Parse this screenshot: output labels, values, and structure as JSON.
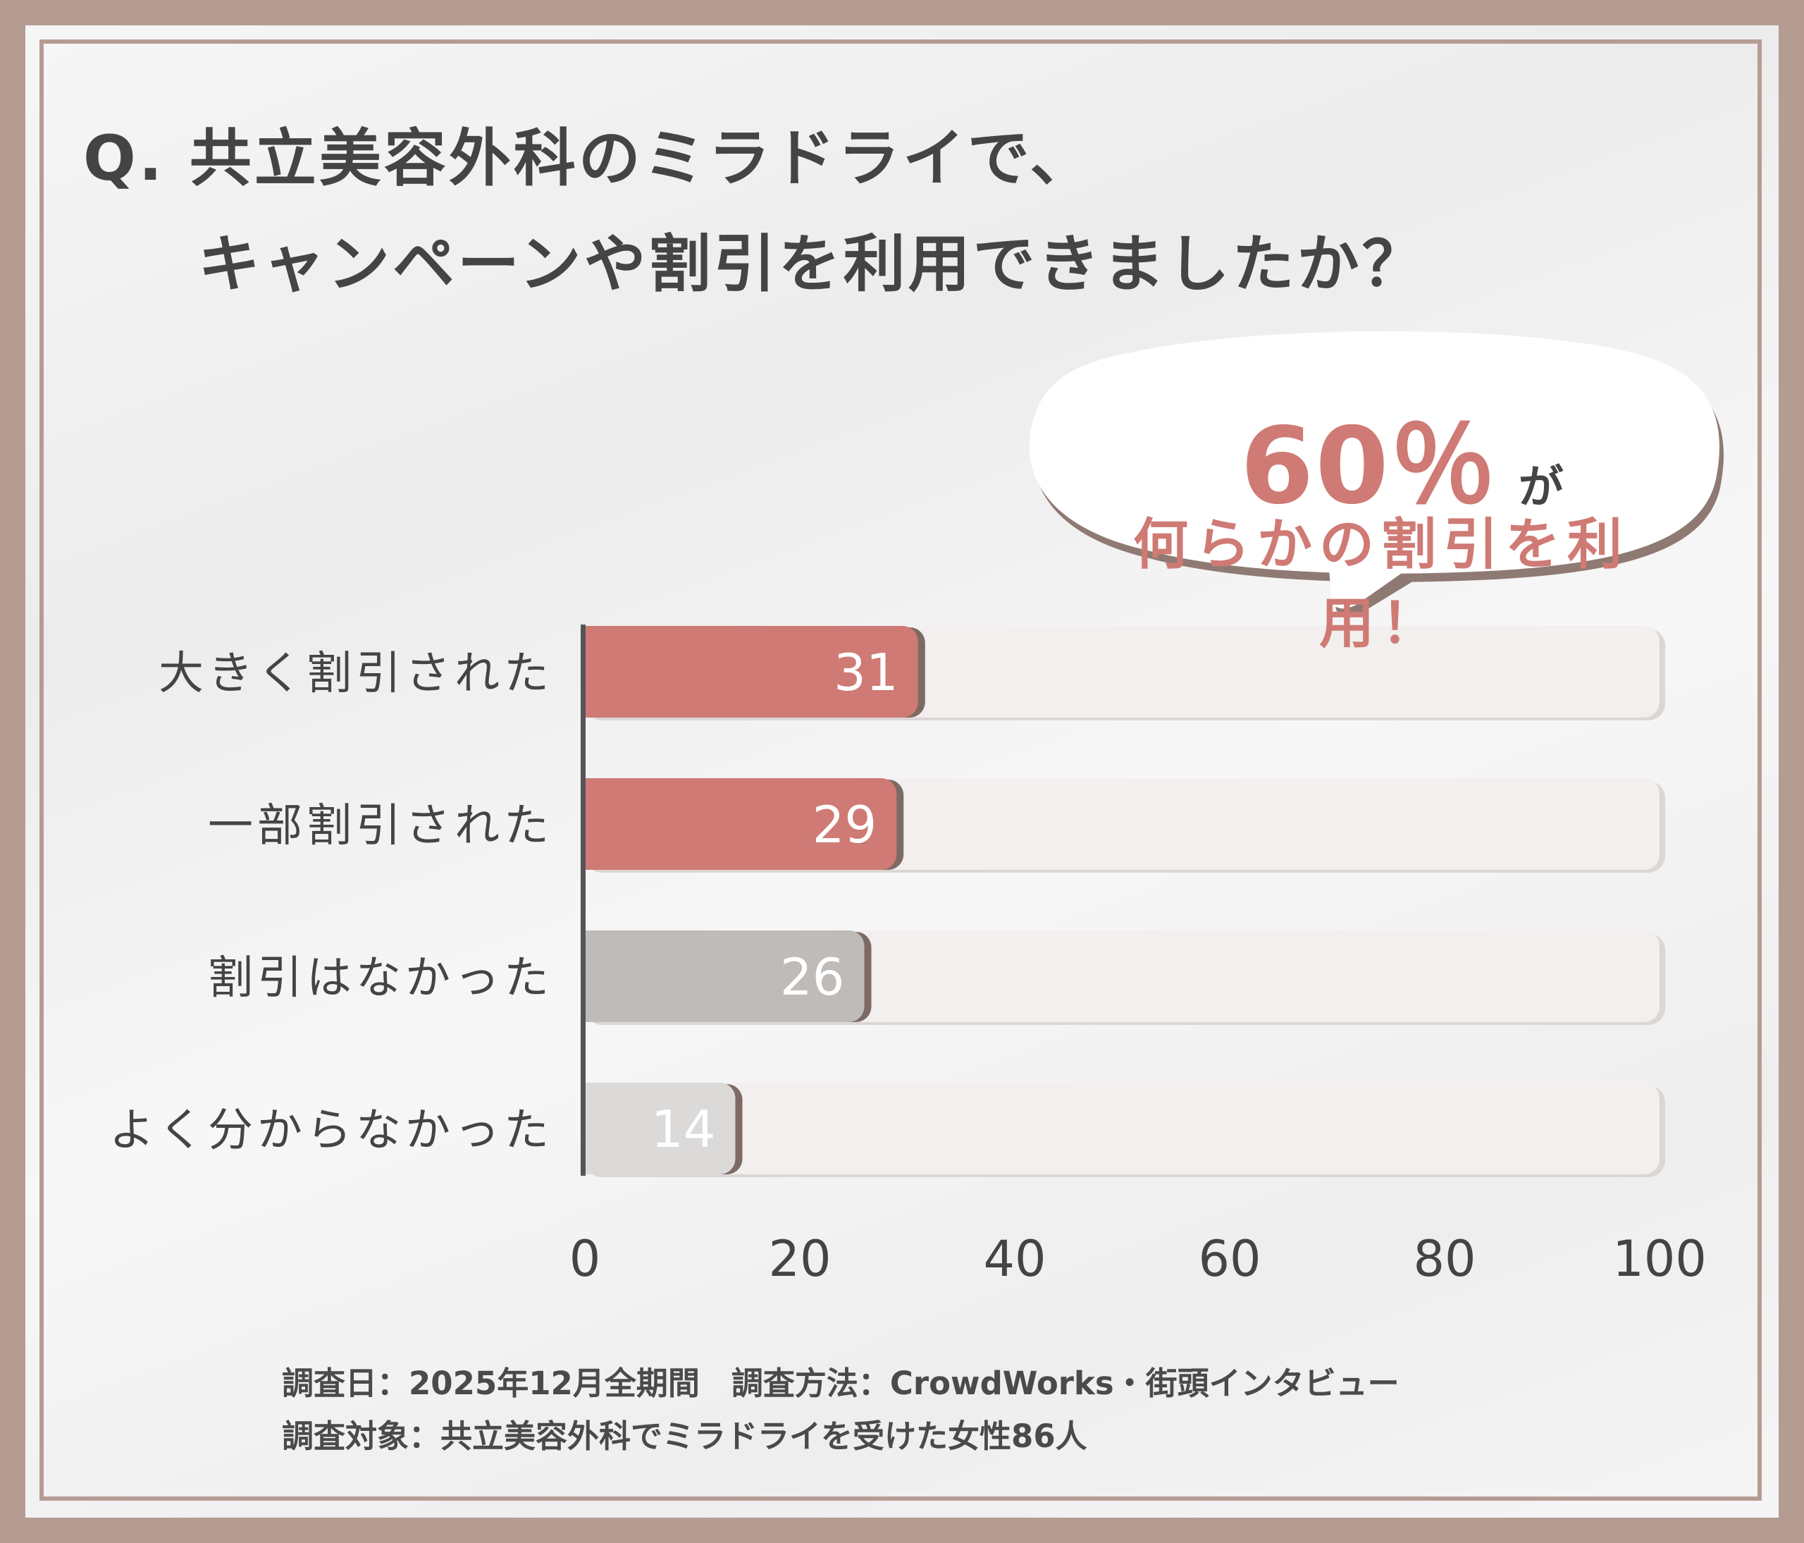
{
  "title": {
    "line1": "Q. 共立美容外科のミラドライで、",
    "line2": "キャンペーンや割引を利用できましたか？"
  },
  "callout": {
    "percent": "60％",
    "suffix": "が",
    "text": "何らかの割引を利用！"
  },
  "chart_data": {
    "type": "bar",
    "orientation": "horizontal",
    "categories": [
      "大きく割引された",
      "一部割引された",
      "割引はなかった",
      "よく分からなかった"
    ],
    "values": [
      31,
      29,
      26,
      14
    ],
    "xlim": [
      0,
      100
    ],
    "x_ticks": [
      "0",
      "20",
      "40",
      "60",
      "80",
      "100"
    ],
    "bar_colors": [
      "#cf7a74",
      "#cf7a74",
      "#bebbb9",
      "#dcdad9"
    ],
    "track_color": "#f2efee"
  },
  "footer": {
    "line1": "調査日：2025年12月全期間　調査方法：CrowdWorks・街頭インタビュー",
    "line2": "調査対象：共立美容外科でミラドライを受けた女性86人"
  },
  "colors": {
    "frame": "#b59c93",
    "accent": "#cf7a74",
    "text": "#444444"
  }
}
